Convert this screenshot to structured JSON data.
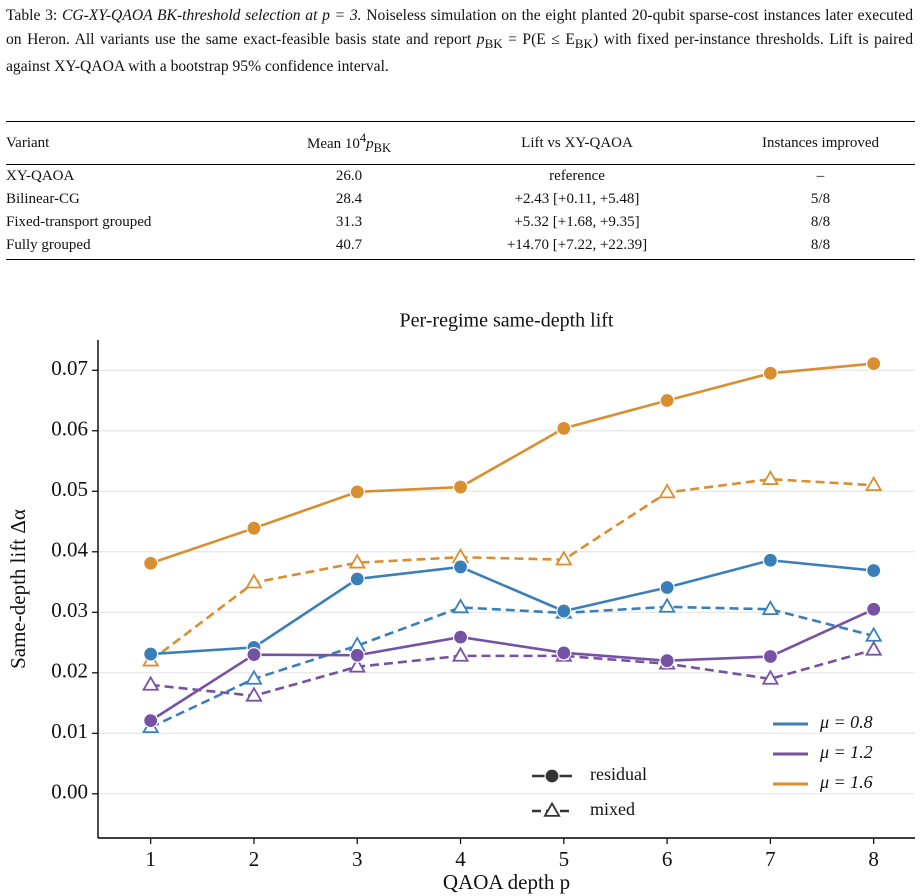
{
  "caption": {
    "label": "Table 3:",
    "title_parts": [
      "CG-XY-QAOA BK-threshold selection at ",
      "p",
      " = 3."
    ],
    "body_parts": [
      "Noiseless simulation on the eight planted 20-qubit sparse-cost instances later executed on Heron. All variants use the same exact-feasible basis state and report ",
      "p",
      "BK",
      " = P(E ≤ E",
      "BK",
      ") with fixed per-instance thresholds. Lift is paired against XY-QAOA with a bootstrap 95% confidence interval."
    ]
  },
  "table": {
    "header": [
      "Variant",
      {
        "parts": [
          "Mean 10",
          "4",
          "p",
          "BK"
        ]
      },
      "Lift vs XY-QAOA",
      "Instances improved"
    ],
    "rows": [
      [
        "XY-QAOA",
        "26.0",
        "reference",
        "–"
      ],
      [
        "Bilinear-CG",
        "28.4",
        "+2.43 [+0.11, +5.48]",
        "5/8"
      ],
      [
        "Fixed-transport grouped",
        "31.3",
        "+5.32 [+1.68, +9.35]",
        "8/8"
      ],
      [
        "Fully grouped",
        "40.7",
        "+14.70 [+7.22, +22.39]",
        "8/8"
      ]
    ]
  },
  "chart_data": {
    "type": "line",
    "title": "Per-regime same-depth lift",
    "x_label": "QAOA depth p",
    "y_label": "Same-depth lift Δα",
    "x": [
      1,
      2,
      3,
      4,
      5,
      6,
      7,
      8
    ],
    "xlim": [
      0.49,
      8.4
    ],
    "xticks": [
      1,
      2,
      3,
      4,
      5,
      6,
      7,
      8
    ],
    "ylim": [
      -0.0073,
      0.075
    ],
    "yticks": [
      {
        "value": 0,
        "label": "0.00"
      },
      0.01,
      0.02,
      0.03,
      0.04,
      0.05,
      0.06,
      0.07
    ],
    "grid": true,
    "styles": [
      "residual",
      "mixed"
    ],
    "legend": "lower right",
    "series": [
      {
        "name": "μ = 0.8",
        "color": "#3a7fba",
        "residual": [
          0.0231,
          0.0242,
          0.0355,
          0.0375,
          0.0302,
          0.0341,
          0.0386,
          0.0369
        ],
        "mixed": [
          0.011,
          0.019,
          0.0245,
          0.0308,
          0.0299,
          0.0309,
          0.0305,
          0.0261
        ]
      },
      {
        "name": "μ = 1.2",
        "color": "#7552a3",
        "residual": [
          0.0121,
          0.023,
          0.0229,
          0.0259,
          0.0233,
          0.022,
          0.0227,
          0.0305
        ],
        "mixed": [
          0.018,
          0.0162,
          0.021,
          0.0228,
          0.0228,
          0.0215,
          0.019,
          0.0238
        ]
      },
      {
        "name": "μ = 1.6",
        "color": "#d98e2f",
        "residual": [
          0.0381,
          0.0439,
          0.0499,
          0.0507,
          0.0604,
          0.065,
          0.0695,
          0.0711
        ],
        "mixed": [
          0.022,
          0.0349,
          0.0382,
          0.0391,
          0.0387,
          0.0498,
          0.052,
          0.051
        ]
      }
    ]
  }
}
